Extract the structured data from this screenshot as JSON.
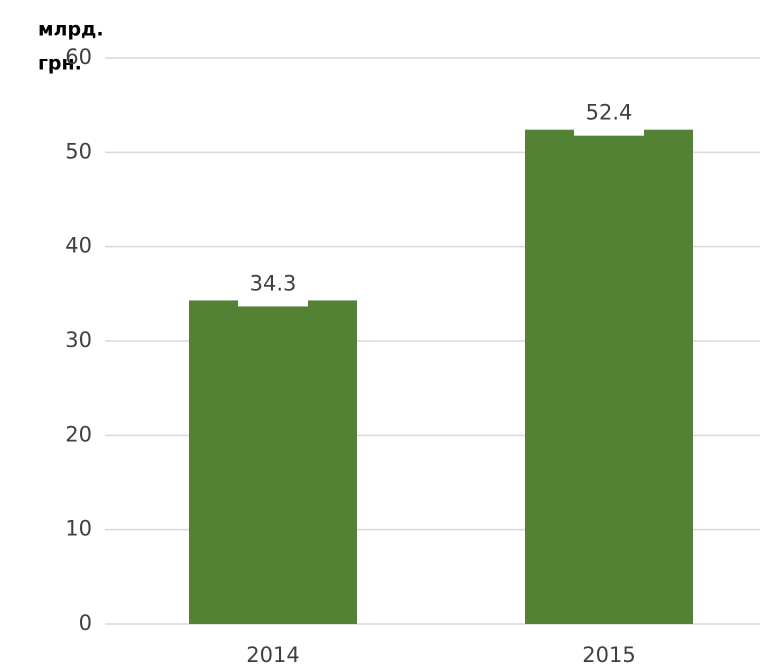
{
  "chart_data": {
    "type": "bar",
    "ylabel": [
      "млрд.",
      "грн."
    ],
    "categories": [
      "2014",
      "2015"
    ],
    "values": [
      34.3,
      52.4
    ],
    "color": "#548235",
    "ylim": [
      0,
      60
    ],
    "yticks": [
      0,
      10,
      20,
      30,
      40,
      50,
      60
    ],
    "grid": true
  }
}
